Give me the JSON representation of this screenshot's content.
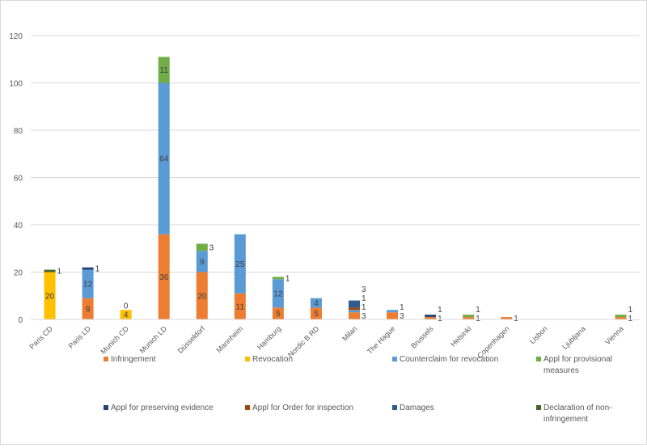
{
  "chart_data": {
    "type": "bar",
    "stacked": true,
    "categories": [
      "Paris CD",
      "Paris LD",
      "Munich CD",
      "Munich LD",
      "Düsseldorf",
      "Mannheim",
      "Hamburg",
      "Nordic B RD",
      "Milan",
      "The Hague",
      "Brussels",
      "Helsinki",
      "Copenhagen",
      "Lisbon",
      "Ljubljana",
      "Vienna"
    ],
    "series": [
      {
        "name": "Infringement",
        "color": "#ED7D31",
        "values": [
          0,
          9,
          0,
          36,
          20,
          11,
          5,
          5,
          3,
          3,
          1,
          1,
          1,
          0,
          0,
          1
        ]
      },
      {
        "name": "Revocation",
        "color": "#FFC000",
        "values": [
          20,
          0,
          4,
          0,
          0,
          0,
          0,
          0,
          0,
          0,
          0,
          0,
          0,
          0,
          0,
          0
        ]
      },
      {
        "name": "Counterclaim for revocation",
        "color": "#5B9BD5",
        "values": [
          0,
          12,
          0,
          64,
          9,
          25,
          12,
          4,
          1,
          1,
          0,
          0,
          0,
          0,
          0,
          0
        ]
      },
      {
        "name": "Appl for provisional measures",
        "color": "#70AD47",
        "values": [
          0,
          0,
          0,
          11,
          3,
          0,
          1,
          0,
          0,
          0,
          0,
          1,
          0,
          0,
          0,
          1
        ]
      },
      {
        "name": "Appl for preserving evidence",
        "color": "#264478",
        "values": [
          0,
          1,
          0,
          0,
          0,
          0,
          0,
          0,
          0,
          0,
          1,
          0,
          0,
          0,
          0,
          0
        ]
      },
      {
        "name": "Appl for Order for inspection",
        "color": "#9E480E",
        "values": [
          0,
          0,
          0,
          0,
          0,
          0,
          0,
          0,
          1,
          0,
          0,
          0,
          0,
          0,
          0,
          0
        ]
      },
      {
        "name": "Damages",
        "color": "#2E5C8E",
        "values": [
          0,
          0,
          0,
          0,
          0,
          0,
          0,
          0,
          3,
          0,
          0,
          0,
          0,
          0,
          0,
          0
        ]
      },
      {
        "name": "Declaration of non- infringement",
        "color": "#43682B",
        "values": [
          1,
          0,
          0,
          0,
          0,
          0,
          0,
          0,
          0,
          0,
          0,
          0,
          0,
          0,
          0,
          0
        ]
      }
    ],
    "extra_labels": [
      {
        "category": "Munich CD",
        "text": "0"
      }
    ],
    "yticks": [
      0,
      20,
      40,
      60,
      80,
      100,
      120
    ],
    "ylim": [
      0,
      120
    ],
    "grid": true,
    "legend": "bottom",
    "title": "",
    "xlabel": "",
    "ylabel": ""
  }
}
